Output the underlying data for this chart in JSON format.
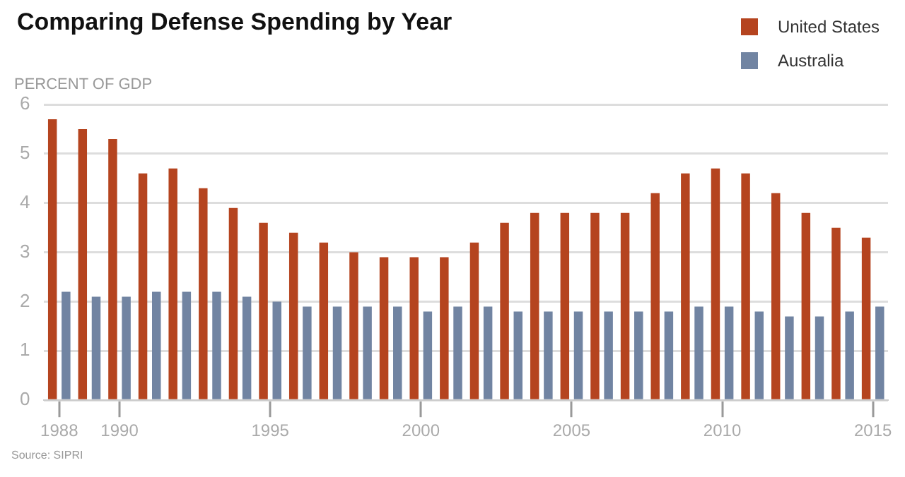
{
  "chart_data": {
    "type": "bar",
    "title": "Comparing Defense Spending by Year",
    "ylabel": "PERCENT OF GDP",
    "categories": [
      "1988",
      null,
      "1990",
      null,
      null,
      null,
      null,
      "1995",
      null,
      null,
      null,
      null,
      "2000",
      null,
      null,
      null,
      null,
      "2005",
      null,
      null,
      null,
      null,
      "2010",
      null,
      null,
      null,
      null,
      "2015"
    ],
    "series": [
      {
        "name": "United States",
        "color": "#b5441f",
        "values": [
          5.7,
          5.5,
          5.3,
          4.6,
          4.7,
          4.3,
          3.9,
          3.6,
          3.4,
          3.2,
          3.0,
          2.9,
          2.9,
          2.9,
          3.2,
          3.6,
          3.8,
          3.8,
          3.8,
          3.8,
          4.2,
          4.6,
          4.7,
          4.6,
          4.2,
          3.8,
          3.5,
          3.3
        ]
      },
      {
        "name": "Australia",
        "color": "#7184a2",
        "values": [
          2.2,
          2.1,
          2.1,
          2.2,
          2.2,
          2.2,
          2.1,
          2.0,
          1.9,
          1.9,
          1.9,
          1.9,
          1.8,
          1.9,
          1.9,
          1.8,
          1.8,
          1.8,
          1.8,
          1.8,
          1.8,
          1.9,
          1.9,
          1.8,
          1.7,
          1.7,
          1.8,
          1.9
        ]
      }
    ],
    "ylim": [
      0,
      6
    ],
    "yticks": [
      0,
      1,
      2,
      3,
      4,
      5,
      6
    ],
    "grid": "y",
    "legend": "top right",
    "annotations": [
      "Source: SIPRI"
    ]
  }
}
